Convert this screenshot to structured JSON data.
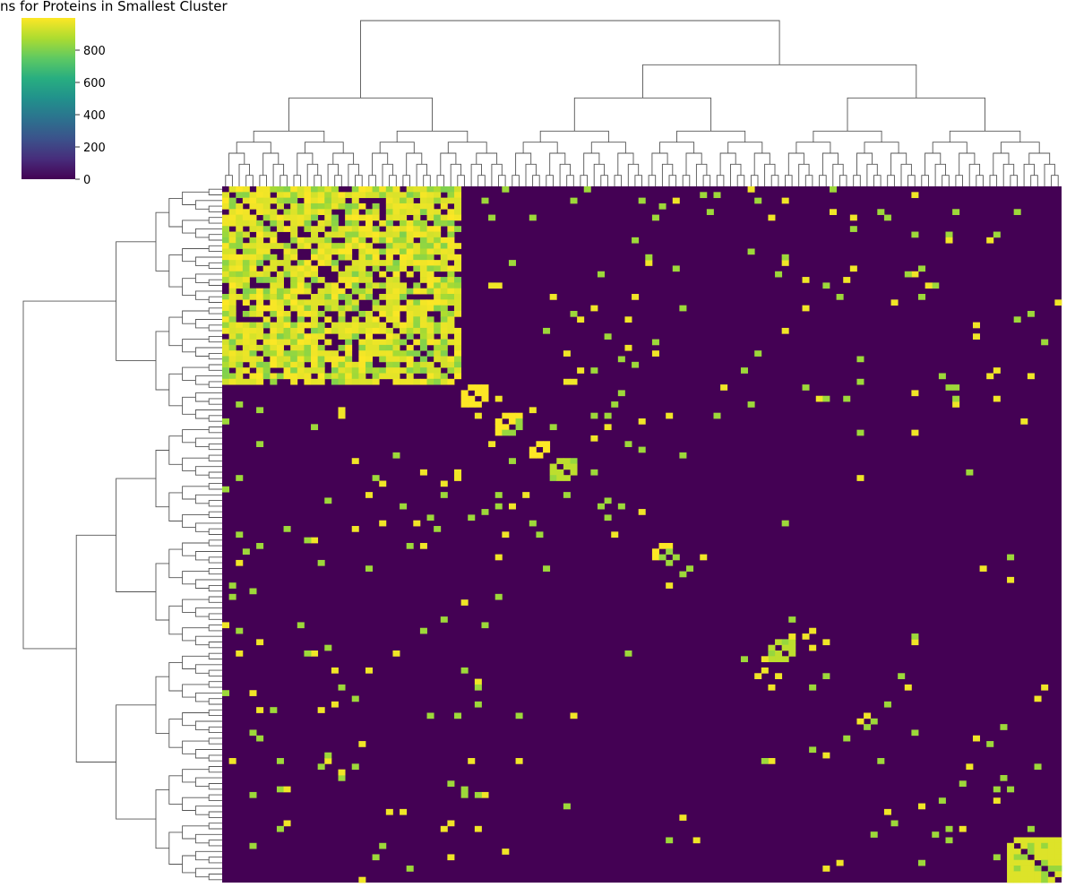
{
  "chart_data": {
    "type": "heatmap",
    "title": "ns for Proteins in Smallest Cluster",
    "colormap": "viridis",
    "colorbar": {
      "range": [
        0,
        1000
      ],
      "ticks": [
        {
          "value": 0,
          "label": "0"
        },
        {
          "value": 200,
          "label": "200"
        },
        {
          "value": 400,
          "label": "400"
        },
        {
          "value": 600,
          "label": "600"
        },
        {
          "value": 800,
          "label": "800"
        }
      ]
    },
    "matrix": {
      "size": 123,
      "background_value": 0,
      "diagonal_value": 0,
      "blocks": [
        {
          "from": 0,
          "to": 35,
          "value": 950
        },
        {
          "from": 35,
          "to": 39,
          "value": 1000
        },
        {
          "from": 40,
          "to": 44,
          "value": 1000
        },
        {
          "from": 45,
          "to": 48,
          "value": 1000
        },
        {
          "from": 48,
          "to": 52,
          "value": 900
        },
        {
          "from": 63,
          "to": 66,
          "value": 1000
        },
        {
          "from": 80,
          "to": 84,
          "value": 900
        },
        {
          "from": 115,
          "to": 123,
          "value": 950
        }
      ]
    },
    "grid": false
  }
}
